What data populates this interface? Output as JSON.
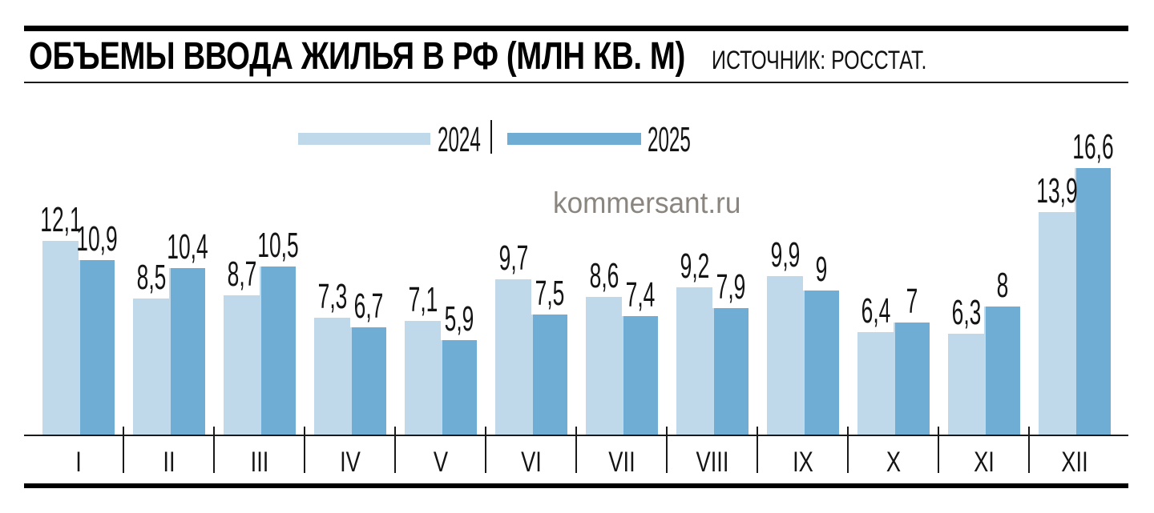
{
  "header": {
    "title": "ОБЪЕМЫ ВВОДА ЖИЛЬЯ В РФ (МЛН КВ. М)",
    "source": "ИСТОЧНИК: РОССТАТ."
  },
  "watermark": "kommersant.ru",
  "legend": [
    {
      "label": "2024",
      "color": "#bfd9eb"
    },
    {
      "label": "2025",
      "color": "#6fadd4"
    }
  ],
  "colors": {
    "bar_2024": "#bfd9eb",
    "bar_2025": "#6fadd4",
    "axis": "#1a1a1a",
    "text": "#141414",
    "watermark": "#8a857f"
  },
  "chart_data": {
    "type": "bar",
    "title": "ОБЪЕМЫ ВВОДА ЖИЛЬЯ В РФ (МЛН КВ. М)",
    "source": "ИСТОЧНИК: РОССТАТ.",
    "categories": [
      "I",
      "II",
      "III",
      "IV",
      "V",
      "VI",
      "VII",
      "VIII",
      "IX",
      "X",
      "XI",
      "XII"
    ],
    "series": [
      {
        "name": "2024",
        "color": "#bfd9eb",
        "values": [
          12.1,
          8.5,
          8.7,
          7.3,
          7.1,
          9.7,
          8.6,
          9.2,
          9.9,
          6.4,
          6.3,
          13.9
        ]
      },
      {
        "name": "2025",
        "color": "#6fadd4",
        "values": [
          10.9,
          10.4,
          10.5,
          6.7,
          5.9,
          7.5,
          7.4,
          7.9,
          9,
          7,
          8,
          16.6
        ]
      }
    ],
    "value_labels_shown": true,
    "decimal_separator": ",",
    "legend_position": "top-center",
    "grid": false,
    "xlabel": "",
    "ylabel": "",
    "ylim": [
      0,
      17
    ]
  }
}
